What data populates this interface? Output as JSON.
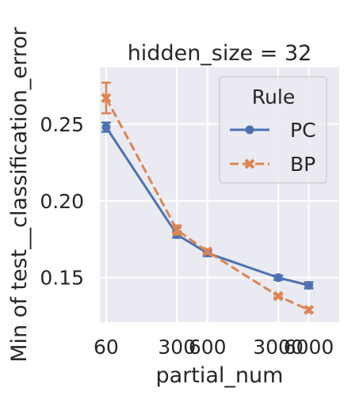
{
  "chart_data": {
    "type": "line",
    "title": "hidden_size = 32",
    "xlabel": "partial_num",
    "ylabel": "Min of test__classification_error",
    "x_scale": "log",
    "xlim": [
      52,
      12000
    ],
    "ylim": [
      0.121,
      0.287
    ],
    "x_ticks": [
      60,
      300,
      600,
      3000,
      6000
    ],
    "x_tick_labels": [
      "60",
      "300",
      "600",
      "3000",
      "6000"
    ],
    "y_ticks": [
      0.15,
      0.2,
      0.25
    ],
    "y_tick_labels": [
      "0.15",
      "0.20",
      "0.25"
    ],
    "grid": true,
    "legend": {
      "title": "Rule",
      "placement": "top-right"
    },
    "series": [
      {
        "name": "PC",
        "color": "#4c72b0",
        "marker": "circle",
        "linestyle": "solid",
        "x": [
          60,
          300,
          600,
          3000,
          6000
        ],
        "y": [
          0.248,
          0.178,
          0.166,
          0.15,
          0.145
        ],
        "err": [
          0.003,
          0.002,
          0.002,
          0.0015,
          0.002
        ]
      },
      {
        "name": "BP",
        "color": "#dd8452",
        "marker": "x",
        "linestyle": "dashed",
        "x": [
          60,
          300,
          600,
          3000,
          6000
        ],
        "y": [
          0.267,
          0.181,
          0.167,
          0.138,
          0.129
        ],
        "err": [
          0.01,
          0.003,
          0.0015,
          0.001,
          0.0015
        ]
      }
    ]
  }
}
